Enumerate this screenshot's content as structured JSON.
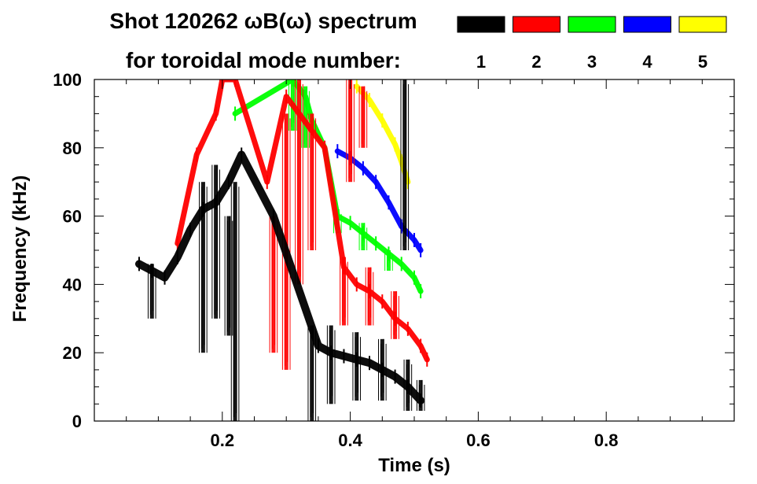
{
  "header": {
    "title_line1": "Shot 120262 ωB(ω) spectrum",
    "title_line2": "for toroidal mode number:"
  },
  "legend": [
    {
      "label": "1",
      "color": "#000000"
    },
    {
      "label": "2",
      "color": "#ff0000"
    },
    {
      "label": "3",
      "color": "#00ff00"
    },
    {
      "label": "4",
      "color": "#0000ff"
    },
    {
      "label": "5",
      "color": "#ffff00"
    }
  ],
  "chart_data": {
    "type": "heatmap",
    "title": "Shot 120262 ωB(ω) spectrum",
    "xlabel": "Time (s)",
    "ylabel": "Frequency (kHz)",
    "xlim": [
      0.0,
      1.0
    ],
    "ylim": [
      0,
      100
    ],
    "xticks": [
      0.2,
      0.4,
      0.6,
      0.8
    ],
    "xtick_labels": [
      "0.2",
      "0.4",
      "0.6",
      "0.8"
    ],
    "yticks": [
      0,
      20,
      40,
      60,
      80,
      100
    ],
    "ytick_labels": [
      "0",
      "20",
      "40",
      "60",
      "80",
      "100"
    ],
    "grid": false,
    "legend_position": "top-right",
    "series": [
      {
        "mode": 1,
        "color": "#000000",
        "points": [
          [
            0.07,
            46
          ],
          [
            0.09,
            44
          ],
          [
            0.11,
            42
          ],
          [
            0.13,
            48
          ],
          [
            0.15,
            56
          ],
          [
            0.17,
            62
          ],
          [
            0.19,
            64
          ],
          [
            0.21,
            70
          ],
          [
            0.23,
            78
          ],
          [
            0.28,
            60
          ],
          [
            0.35,
            22
          ],
          [
            0.37,
            20
          ],
          [
            0.39,
            19
          ],
          [
            0.41,
            18
          ],
          [
            0.43,
            17
          ],
          [
            0.45,
            15
          ],
          [
            0.47,
            13
          ],
          [
            0.49,
            10
          ],
          [
            0.51,
            6
          ]
        ],
        "bursts": [
          [
            0.09,
            30,
            46
          ],
          [
            0.17,
            20,
            70
          ],
          [
            0.19,
            30,
            75
          ],
          [
            0.21,
            25,
            60
          ],
          [
            0.22,
            0,
            70
          ],
          [
            0.34,
            0,
            28
          ],
          [
            0.37,
            5,
            28
          ],
          [
            0.41,
            6,
            26
          ],
          [
            0.45,
            6,
            24
          ],
          [
            0.49,
            3,
            18
          ],
          [
            0.51,
            3,
            12
          ],
          [
            0.485,
            50,
            100
          ]
        ]
      },
      {
        "mode": 2,
        "color": "#ff0000",
        "points": [
          [
            0.13,
            52
          ],
          [
            0.16,
            78
          ],
          [
            0.19,
            90
          ],
          [
            0.2,
            100
          ],
          [
            0.22,
            100
          ],
          [
            0.27,
            70
          ],
          [
            0.3,
            95
          ],
          [
            0.36,
            80
          ],
          [
            0.39,
            45
          ],
          [
            0.41,
            40
          ],
          [
            0.43,
            38
          ],
          [
            0.45,
            35
          ],
          [
            0.47,
            30
          ],
          [
            0.49,
            27
          ],
          [
            0.51,
            22
          ],
          [
            0.52,
            18
          ]
        ],
        "bursts": [
          [
            0.28,
            20,
            60
          ],
          [
            0.3,
            15,
            90
          ],
          [
            0.32,
            40,
            100
          ],
          [
            0.34,
            50,
            90
          ],
          [
            0.39,
            28,
            48
          ],
          [
            0.43,
            28,
            45
          ],
          [
            0.47,
            24,
            38
          ],
          [
            0.4,
            70,
            100
          ],
          [
            0.42,
            80,
            98
          ]
        ]
      },
      {
        "mode": 3,
        "color": "#00ff00",
        "points": [
          [
            0.22,
            90
          ],
          [
            0.31,
            100
          ],
          [
            0.33,
            95
          ],
          [
            0.34,
            88
          ],
          [
            0.36,
            80
          ],
          [
            0.38,
            60
          ],
          [
            0.4,
            58
          ],
          [
            0.42,
            55
          ],
          [
            0.44,
            52
          ],
          [
            0.46,
            49
          ],
          [
            0.48,
            46
          ],
          [
            0.5,
            42
          ],
          [
            0.51,
            38
          ]
        ],
        "bursts": [
          [
            0.31,
            85,
            100
          ],
          [
            0.33,
            80,
            98
          ],
          [
            0.38,
            55,
            62
          ],
          [
            0.42,
            50,
            58
          ],
          [
            0.46,
            44,
            50
          ]
        ]
      },
      {
        "mode": 4,
        "color": "#0000ff",
        "points": [
          [
            0.38,
            79
          ],
          [
            0.4,
            77
          ],
          [
            0.42,
            74
          ],
          [
            0.44,
            70
          ],
          [
            0.46,
            64
          ],
          [
            0.48,
            57
          ],
          [
            0.5,
            53
          ],
          [
            0.51,
            50
          ]
        ],
        "bursts": []
      },
      {
        "mode": 5,
        "color": "#ffff00",
        "points": [
          [
            0.41,
            98
          ],
          [
            0.43,
            94
          ],
          [
            0.45,
            88
          ],
          [
            0.47,
            81
          ],
          [
            0.48,
            76
          ],
          [
            0.49,
            70
          ]
        ],
        "bursts": []
      }
    ]
  }
}
